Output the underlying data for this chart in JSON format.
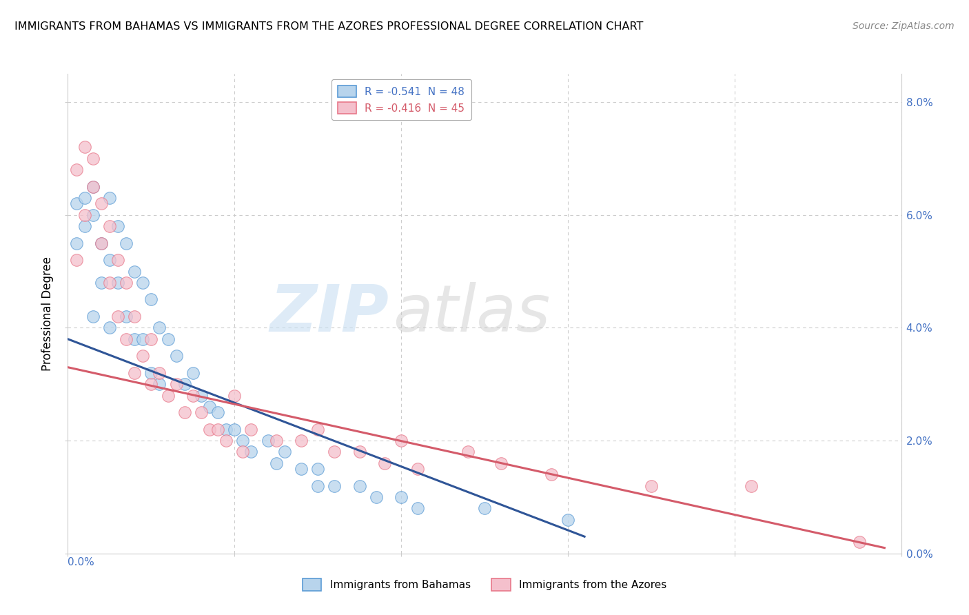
{
  "title": "IMMIGRANTS FROM BAHAMAS VS IMMIGRANTS FROM THE AZORES PROFESSIONAL DEGREE CORRELATION CHART",
  "source": "Source: ZipAtlas.com",
  "ylabel": "Professional Degree",
  "legend_blue_label": "R = -0.541  N = 48",
  "legend_pink_label": "R = -0.416  N = 45",
  "legend_bottom_blue": "Immigrants from Bahamas",
  "legend_bottom_pink": "Immigrants from the Azores",
  "blue_fill": "#b8d4ec",
  "pink_fill": "#f4c0cc",
  "blue_edge": "#5b9bd5",
  "pink_edge": "#e8788a",
  "blue_line_color": "#2f5597",
  "pink_line_color": "#d45b6a",
  "grid_color": "#cccccc",
  "blue_scatter_x": [
    0.001,
    0.001,
    0.002,
    0.002,
    0.003,
    0.003,
    0.003,
    0.004,
    0.004,
    0.005,
    0.005,
    0.005,
    0.006,
    0.006,
    0.007,
    0.007,
    0.008,
    0.008,
    0.009,
    0.009,
    0.01,
    0.01,
    0.011,
    0.011,
    0.012,
    0.013,
    0.014,
    0.015,
    0.016,
    0.017,
    0.018,
    0.019,
    0.02,
    0.021,
    0.022,
    0.024,
    0.025,
    0.026,
    0.028,
    0.03,
    0.03,
    0.032,
    0.035,
    0.037,
    0.04,
    0.042,
    0.05,
    0.06
  ],
  "blue_scatter_y": [
    0.062,
    0.055,
    0.063,
    0.058,
    0.065,
    0.06,
    0.042,
    0.055,
    0.048,
    0.063,
    0.052,
    0.04,
    0.058,
    0.048,
    0.055,
    0.042,
    0.05,
    0.038,
    0.048,
    0.038,
    0.045,
    0.032,
    0.04,
    0.03,
    0.038,
    0.035,
    0.03,
    0.032,
    0.028,
    0.026,
    0.025,
    0.022,
    0.022,
    0.02,
    0.018,
    0.02,
    0.016,
    0.018,
    0.015,
    0.015,
    0.012,
    0.012,
    0.012,
    0.01,
    0.01,
    0.008,
    0.008,
    0.006
  ],
  "pink_scatter_x": [
    0.001,
    0.001,
    0.002,
    0.002,
    0.003,
    0.003,
    0.004,
    0.004,
    0.005,
    0.005,
    0.006,
    0.006,
    0.007,
    0.007,
    0.008,
    0.008,
    0.009,
    0.01,
    0.01,
    0.011,
    0.012,
    0.013,
    0.014,
    0.015,
    0.016,
    0.017,
    0.018,
    0.019,
    0.02,
    0.021,
    0.022,
    0.025,
    0.028,
    0.03,
    0.032,
    0.035,
    0.038,
    0.04,
    0.042,
    0.048,
    0.052,
    0.058,
    0.07,
    0.082,
    0.095
  ],
  "pink_scatter_y": [
    0.052,
    0.068,
    0.06,
    0.072,
    0.065,
    0.07,
    0.062,
    0.055,
    0.058,
    0.048,
    0.052,
    0.042,
    0.048,
    0.038,
    0.042,
    0.032,
    0.035,
    0.038,
    0.03,
    0.032,
    0.028,
    0.03,
    0.025,
    0.028,
    0.025,
    0.022,
    0.022,
    0.02,
    0.028,
    0.018,
    0.022,
    0.02,
    0.02,
    0.022,
    0.018,
    0.018,
    0.016,
    0.02,
    0.015,
    0.018,
    0.016,
    0.014,
    0.012,
    0.012,
    0.002
  ],
  "xlim": [
    0.0,
    0.1
  ],
  "ylim": [
    0.0,
    0.085
  ],
  "xticks": [
    0.0,
    0.02,
    0.04,
    0.06,
    0.08,
    0.1
  ],
  "yticks": [
    0.0,
    0.02,
    0.04,
    0.06,
    0.08
  ],
  "ytick_labels": [
    "0.0%",
    "2.0%",
    "4.0%",
    "6.0%",
    "8.0%"
  ],
  "blue_line_x": [
    0.0,
    0.062
  ],
  "blue_line_y": [
    0.038,
    0.003
  ],
  "pink_line_x": [
    0.0,
    0.098
  ],
  "pink_line_y": [
    0.033,
    0.001
  ]
}
